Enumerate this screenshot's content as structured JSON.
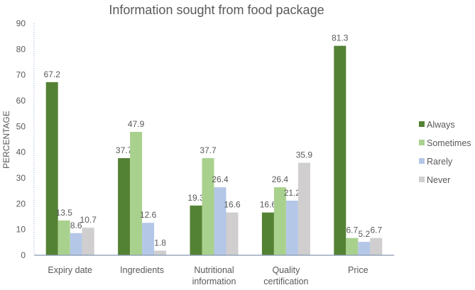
{
  "chart_data": {
    "type": "bar",
    "title": "Information sought from food package",
    "xlabel": "",
    "ylabel": "PERCENTAGE",
    "ylim": [
      0,
      90
    ],
    "yticks": [
      0,
      10,
      20,
      30,
      40,
      50,
      60,
      70,
      80,
      90
    ],
    "grid": false,
    "legend_position": "right",
    "categories": [
      [
        "Expiry date"
      ],
      [
        "Ingredients"
      ],
      [
        "Nutritional",
        "information"
      ],
      [
        "Quality",
        "certification"
      ],
      [
        "Price"
      ]
    ],
    "series": [
      {
        "name": "Always",
        "color": "#548235",
        "values": [
          67.2,
          37.7,
          19.3,
          16.6,
          81.3
        ]
      },
      {
        "name": "Sometimes",
        "color": "#a9d18e",
        "values": [
          13.5,
          47.9,
          37.7,
          26.4,
          6.7
        ]
      },
      {
        "name": "Rarely",
        "color": "#b4c7e7",
        "values": [
          8.6,
          12.6,
          26.4,
          21.2,
          5.2
        ]
      },
      {
        "name": "Never",
        "color": "#d0cece",
        "values": [
          10.7,
          1.8,
          16.6,
          35.9,
          6.7
        ]
      }
    ]
  }
}
